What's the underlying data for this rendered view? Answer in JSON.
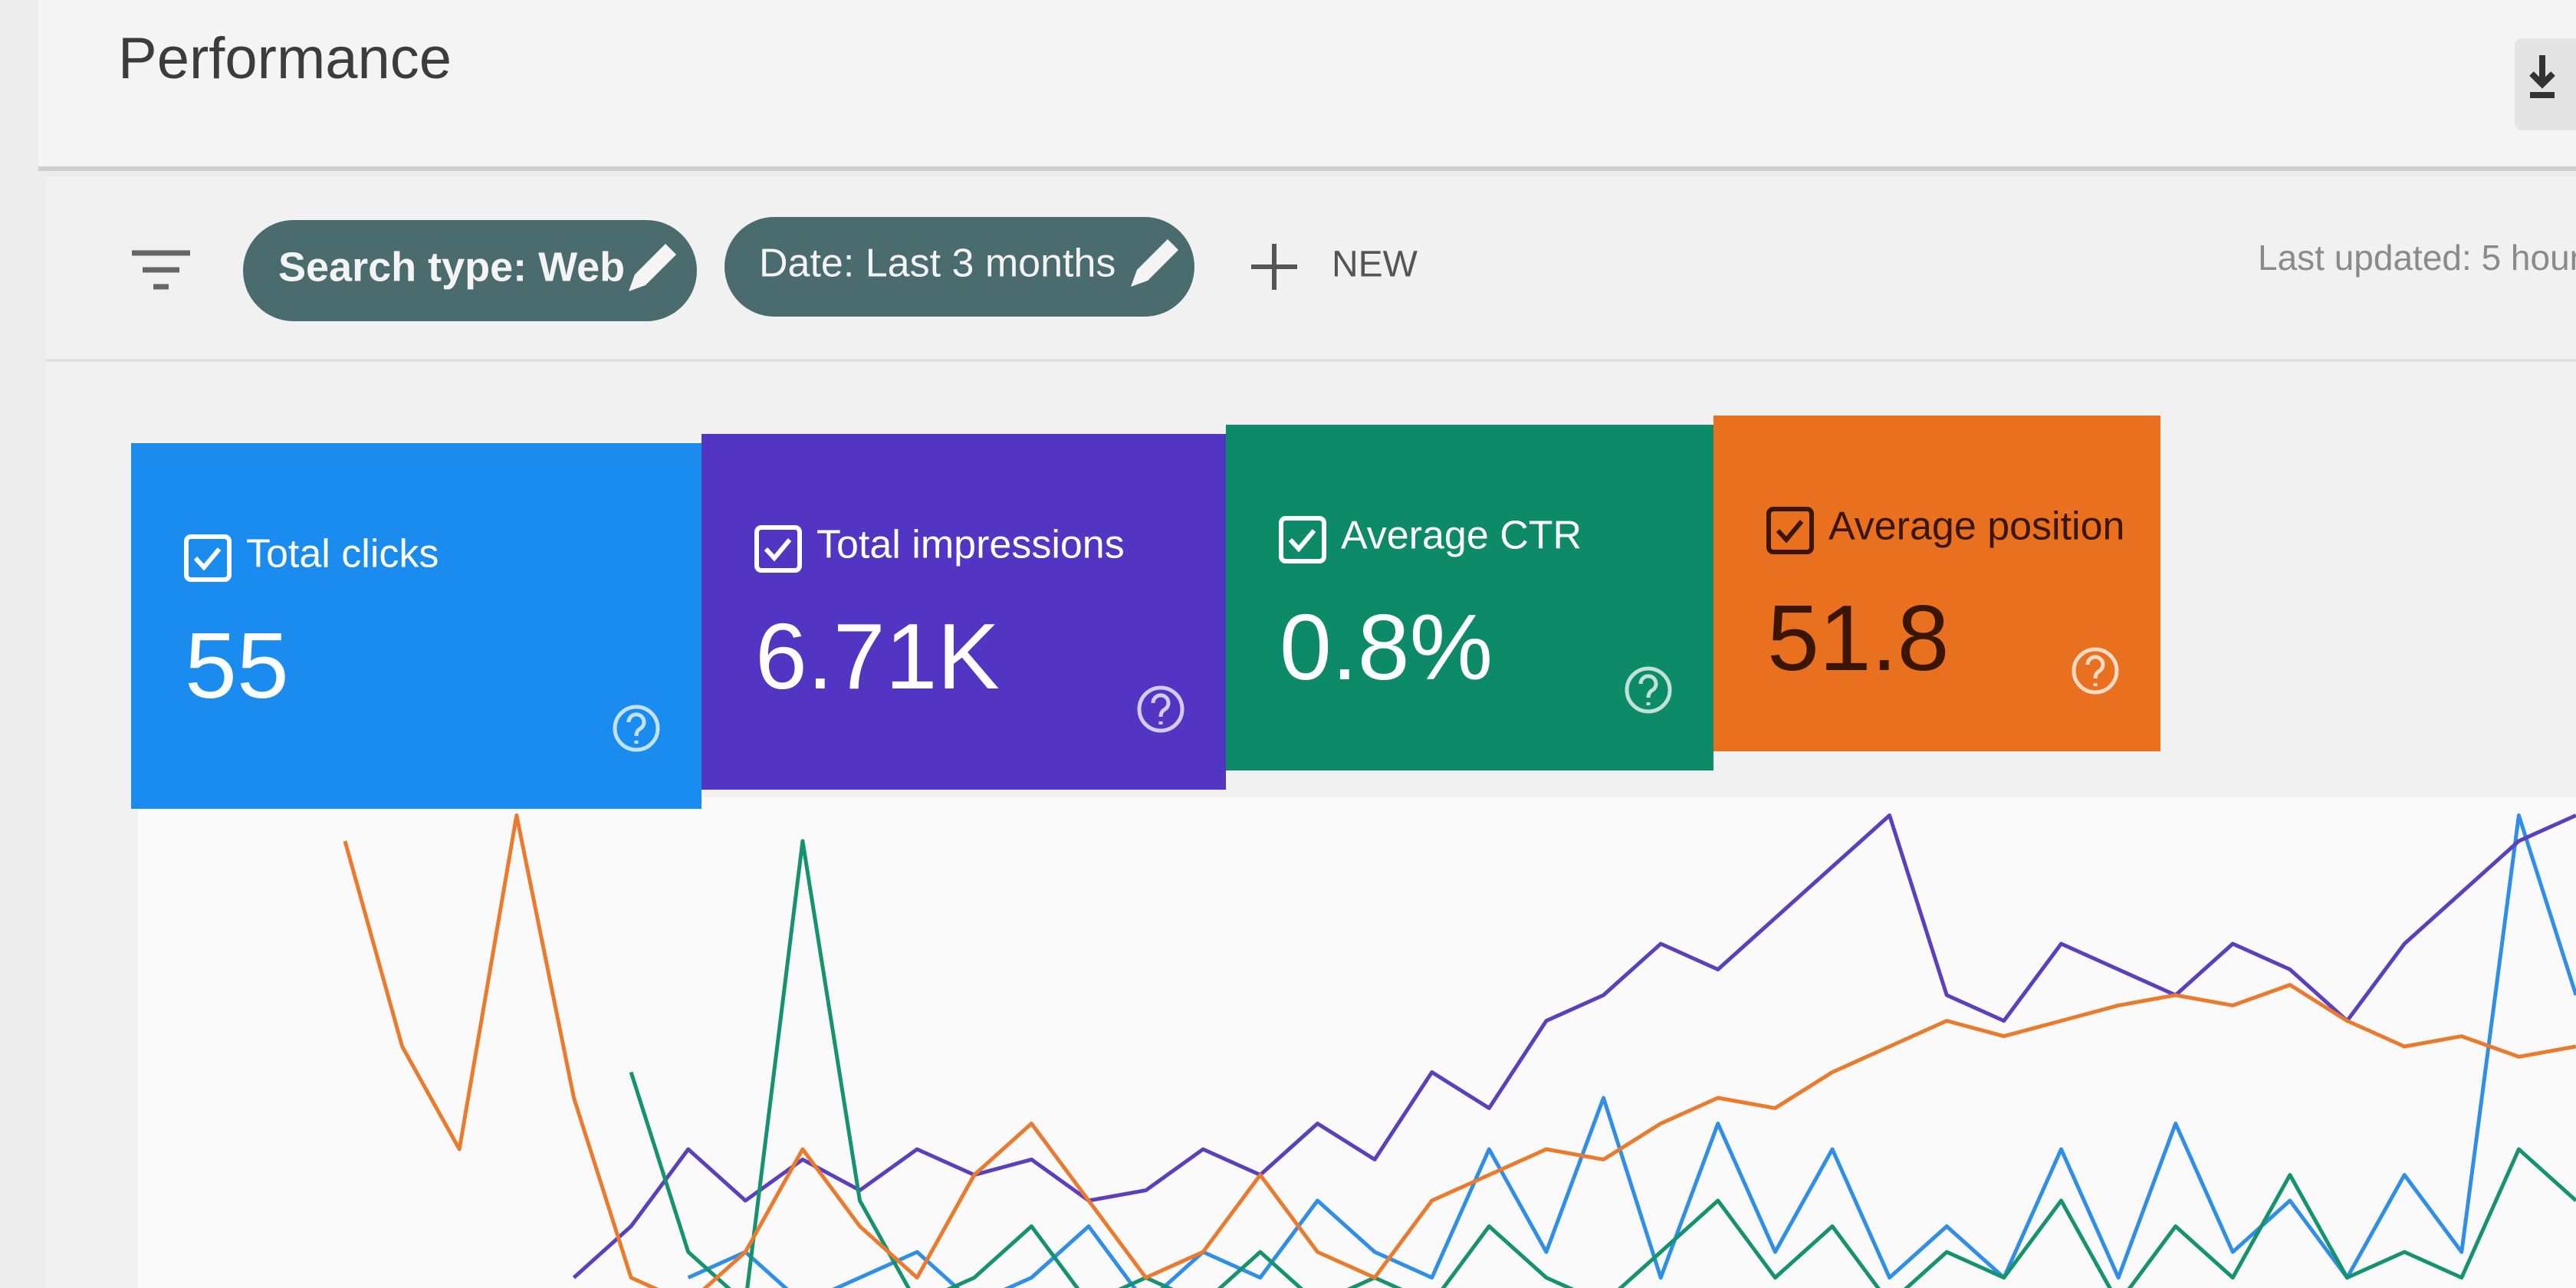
{
  "header": {
    "title": "Performance"
  },
  "filters": {
    "chips": [
      "Search type: Web",
      "Date: Last 3 months"
    ],
    "new_button": "NEW",
    "last_updated": "Last updated: 5 hour"
  },
  "metrics": [
    {
      "label": "Total clicks",
      "value": "55",
      "color": "#1a8cf0",
      "value_color": "#ffffff"
    },
    {
      "label": "Total impressions",
      "value": "6.71K",
      "color": "#5335c4",
      "value_color": "#ffffff"
    },
    {
      "label": "Average CTR",
      "value": "0.8%",
      "color": "#0d8a67",
      "value_color": "#ffffff"
    },
    {
      "label": "Average position",
      "value": "51.8",
      "color": "#e8701f",
      "value_color": "#3a1500"
    }
  ],
  "chart": {
    "ylim": [
      0,
      100
    ],
    "series": [
      {
        "color": "#2f8ee8",
        "values": [
          null,
          null,
          null,
          null,
          null,
          null,
          5,
          10,
          0,
          5,
          10,
          0,
          5,
          15,
          0,
          10,
          5,
          20,
          10,
          5,
          30,
          10,
          40,
          5,
          35,
          10,
          30,
          5,
          15,
          5,
          30,
          5,
          35,
          10,
          20,
          5,
          25,
          10,
          95,
          60
        ]
      },
      {
        "color": "#5a3fbf",
        "values": [
          null,
          null,
          null,
          null,
          5,
          15,
          30,
          20,
          28,
          22,
          30,
          25,
          28,
          20,
          22,
          30,
          25,
          35,
          28,
          45,
          38,
          55,
          60,
          70,
          65,
          75,
          85,
          95,
          60,
          55,
          70,
          65,
          60,
          70,
          65,
          55,
          70,
          80,
          90,
          95
        ]
      },
      {
        "color": "#15936c",
        "values": [
          null,
          null,
          null,
          null,
          null,
          45,
          10,
          0,
          90,
          20,
          0,
          5,
          15,
          0,
          5,
          0,
          10,
          0,
          5,
          0,
          15,
          5,
          0,
          10,
          20,
          5,
          15,
          0,
          10,
          5,
          20,
          0,
          15,
          5,
          25,
          5,
          10,
          5,
          30,
          20
        ]
      },
      {
        "color": "#ec7a2c",
        "values": [
          90,
          50,
          30,
          95,
          40,
          5,
          0,
          10,
          30,
          15,
          5,
          25,
          35,
          20,
          5,
          10,
          25,
          10,
          5,
          20,
          25,
          30,
          28,
          35,
          40,
          38,
          45,
          50,
          55,
          52,
          55,
          58,
          60,
          58,
          62,
          55,
          50,
          52,
          48,
          50
        ]
      }
    ]
  }
}
